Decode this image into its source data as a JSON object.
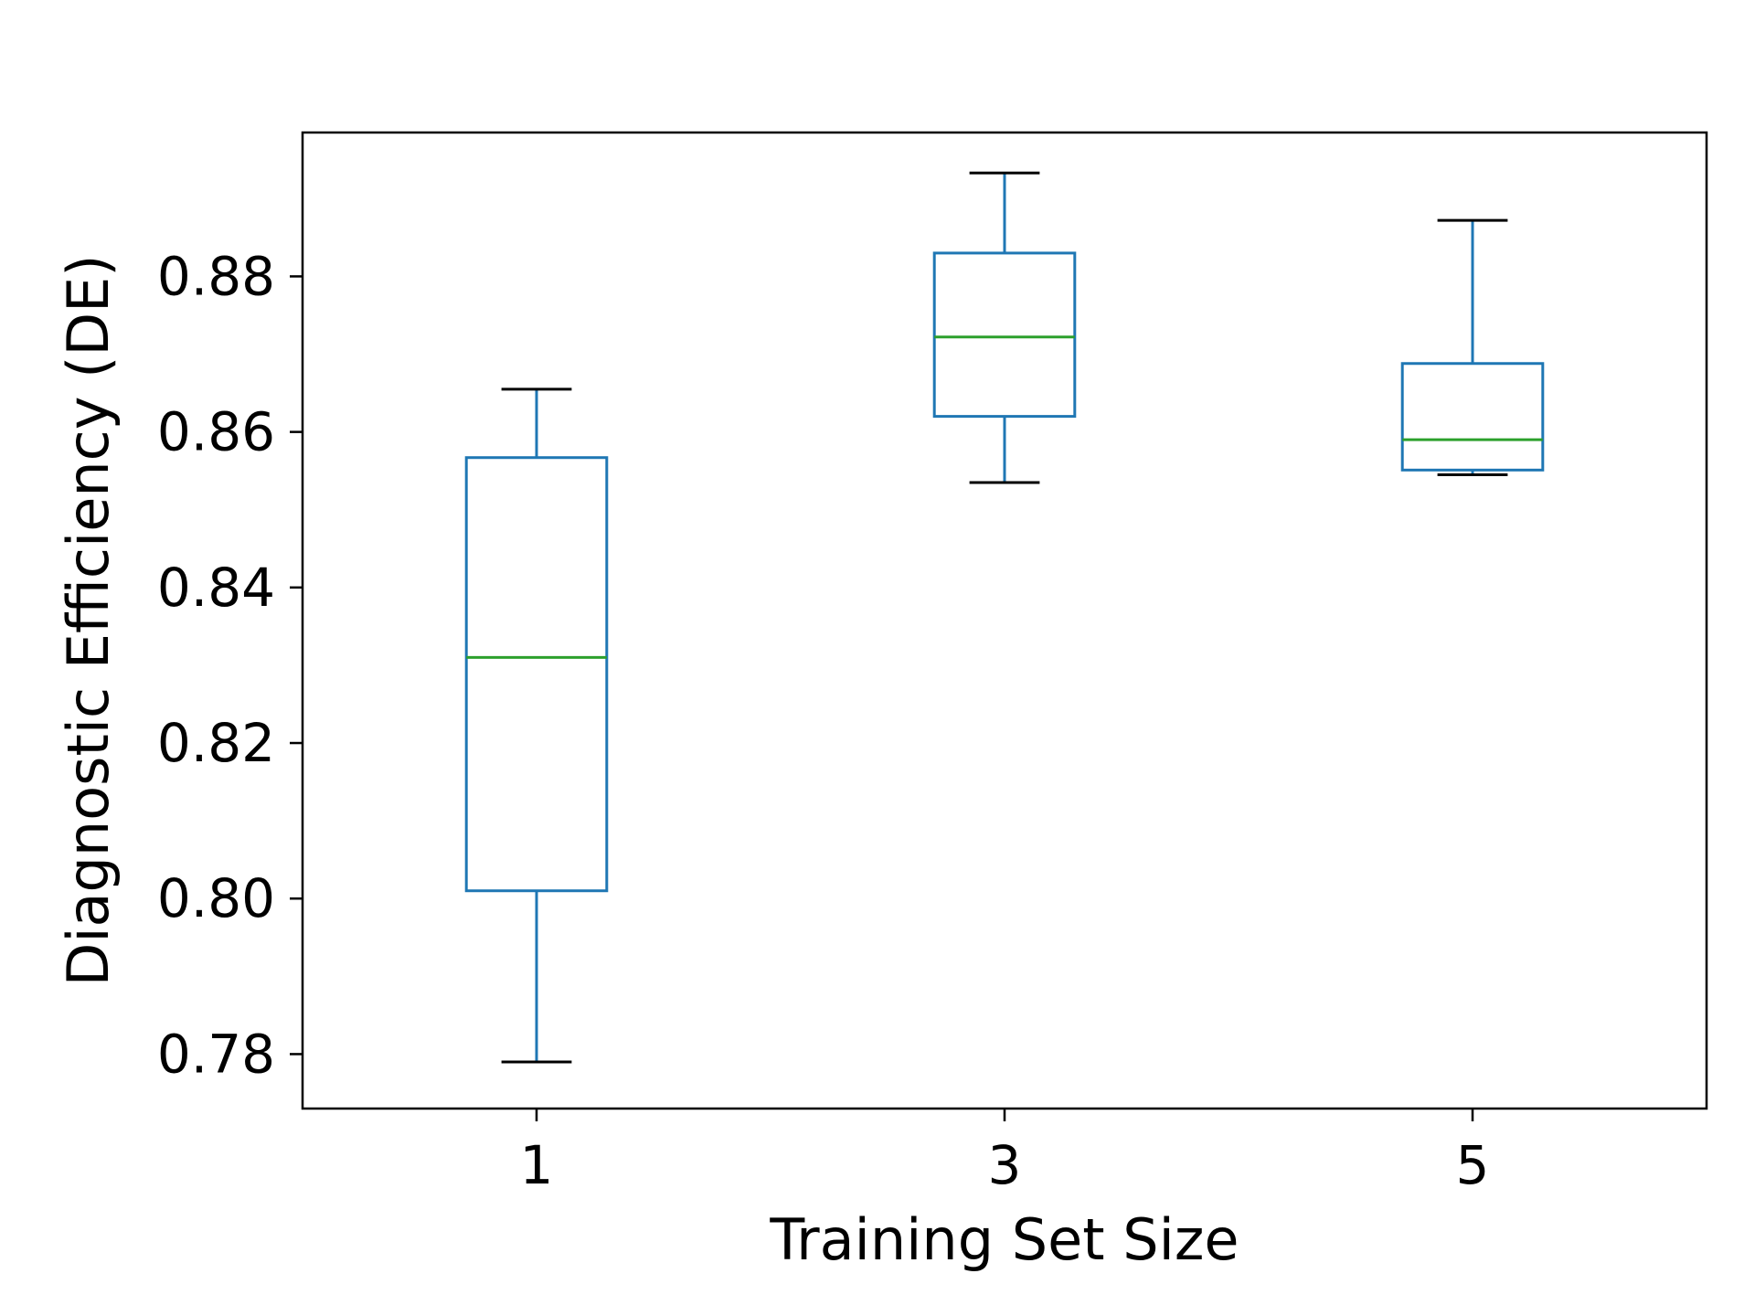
{
  "chart_data": {
    "type": "box",
    "xlabel": "Training Set Size",
    "ylabel": "Diagnostic Efficiency (DE)",
    "categories": [
      "1",
      "3",
      "5"
    ],
    "ylim": [
      0.773,
      0.8985
    ],
    "yticks": [
      0.78,
      0.8,
      0.82,
      0.84,
      0.86,
      0.88
    ],
    "ytick_labels": [
      "0.78",
      "0.80",
      "0.82",
      "0.84",
      "0.86",
      "0.88"
    ],
    "grid": false,
    "legend": "none",
    "boxes": [
      {
        "category": "1",
        "whisker_low": 0.779,
        "q1": 0.801,
        "median": 0.831,
        "q3": 0.8567,
        "whisker_high": 0.8655
      },
      {
        "category": "3",
        "whisker_low": 0.8535,
        "q1": 0.862,
        "median": 0.8722,
        "q3": 0.883,
        "whisker_high": 0.8933
      },
      {
        "category": "5",
        "whisker_low": 0.8545,
        "q1": 0.8551,
        "median": 0.859,
        "q3": 0.8688,
        "whisker_high": 0.8872
      }
    ],
    "colors": {
      "box": "#1f77b4",
      "median": "#2ca02c",
      "cap": "#000000",
      "axes": "#000000"
    }
  }
}
